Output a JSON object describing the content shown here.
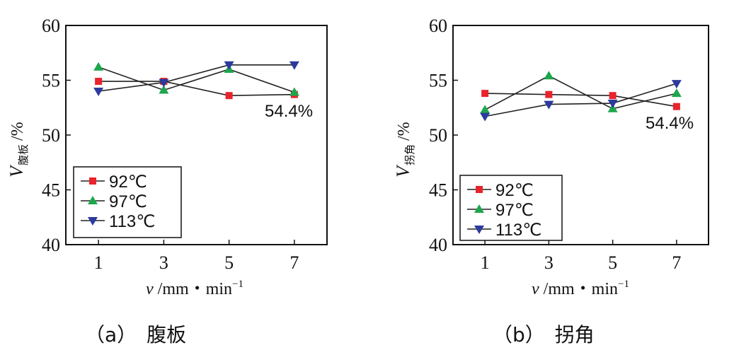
{
  "chart_data": [
    {
      "type": "line",
      "caption_letter": "（a）",
      "caption_text": "腹板",
      "xlabel_var": "v",
      "xlabel_unit": "/mm・min",
      "xlabel_exp": "−1",
      "ylabel_var": "V",
      "ylabel_sub": "腹板",
      "ylabel_unit": "/%",
      "x": [
        1,
        3,
        5,
        7
      ],
      "xlim": [
        0,
        8
      ],
      "ylim": [
        40,
        60
      ],
      "yticks": [
        40,
        45,
        50,
        55,
        60
      ],
      "xticks": [
        1,
        3,
        5,
        7
      ],
      "annotation": "54.4%",
      "legend_position": "bottom-left",
      "grid": false,
      "series": [
        {
          "name": "92℃",
          "marker": "square",
          "color": "#e8232b",
          "values": [
            54.9,
            54.9,
            53.6,
            53.7
          ]
        },
        {
          "name": "97℃",
          "marker": "triangle-up",
          "color": "#1da64b",
          "values": [
            56.2,
            54.1,
            56.0,
            53.9
          ]
        },
        {
          "name": "113℃",
          "marker": "triangle-down",
          "color": "#2b3a9c",
          "values": [
            54.0,
            54.8,
            56.4,
            56.4
          ]
        }
      ]
    },
    {
      "type": "line",
      "caption_letter": "（b）",
      "caption_text": "拐角",
      "xlabel_var": "v",
      "xlabel_unit": "/mm・min",
      "xlabel_exp": "−1",
      "ylabel_var": "V",
      "ylabel_sub": "拐角",
      "ylabel_unit": "/%",
      "x": [
        1,
        3,
        5,
        7
      ],
      "xlim": [
        0,
        8
      ],
      "ylim": [
        40,
        60
      ],
      "yticks": [
        40,
        45,
        50,
        55,
        60
      ],
      "xticks": [
        1,
        3,
        5,
        7
      ],
      "annotation": "54.4%",
      "legend_position": "bottom-left",
      "grid": false,
      "series": [
        {
          "name": "92℃",
          "marker": "square",
          "color": "#e8232b",
          "values": [
            53.8,
            53.7,
            53.6,
            52.6
          ]
        },
        {
          "name": "97℃",
          "marker": "triangle-up",
          "color": "#1da64b",
          "values": [
            52.3,
            55.4,
            52.4,
            53.8
          ]
        },
        {
          "name": "113℃",
          "marker": "triangle-down",
          "color": "#2b3a9c",
          "values": [
            51.7,
            52.8,
            52.9,
            54.7
          ]
        }
      ]
    }
  ]
}
